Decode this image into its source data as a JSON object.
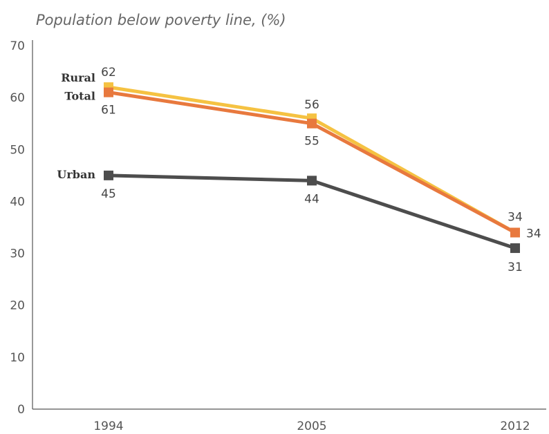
{
  "chart_data": {
    "type": "line",
    "ylabel": "Population below poverty line, (%)",
    "categories": [
      "1994",
      "2005",
      "2012"
    ],
    "ylim": [
      0,
      70
    ],
    "yticks": [
      "0",
      "10",
      "20",
      "30",
      "40",
      "50",
      "60",
      "70"
    ],
    "grid": false,
    "series": [
      {
        "name": "Rural",
        "values": [
          62,
          56,
          34
        ],
        "color": "#f5c242"
      },
      {
        "name": "Total",
        "values": [
          61,
          55,
          34
        ],
        "color": "#e8793e"
      },
      {
        "name": "Urban",
        "values": [
          45,
          44,
          31
        ],
        "color": "#4d4d4d"
      }
    ]
  }
}
